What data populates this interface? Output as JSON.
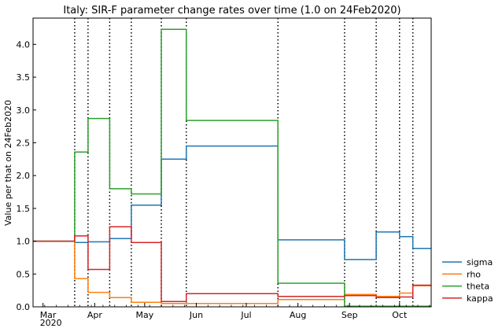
{
  "chart_data": {
    "type": "line",
    "title": "Italy: SIR-F parameter change rates over time (1.0 on 24Feb2020)",
    "xlabel": "",
    "ylabel": "Value per that on 24Feb2020",
    "xlim": [
      "2020-02-24",
      "2020-10-20"
    ],
    "ylim": [
      0,
      4.4
    ],
    "yticks": [
      0.0,
      0.5,
      1.0,
      1.5,
      2.0,
      2.5,
      3.0,
      3.5,
      4.0
    ],
    "xticks": [
      {
        "date": "2020-03-01",
        "label": "Mar",
        "sublabel": "2020"
      },
      {
        "date": "2020-04-01",
        "label": "Apr"
      },
      {
        "date": "2020-05-01",
        "label": "May"
      },
      {
        "date": "2020-06-01",
        "label": "Jun"
      },
      {
        "date": "2020-07-01",
        "label": "Jul"
      },
      {
        "date": "2020-08-01",
        "label": "Aug"
      },
      {
        "date": "2020-09-01",
        "label": "Sep"
      },
      {
        "date": "2020-10-01",
        "label": "Oct"
      }
    ],
    "change_dates": [
      "2020-03-20",
      "2020-03-28",
      "2020-04-10",
      "2020-04-23",
      "2020-05-11",
      "2020-05-26",
      "2020-07-20",
      "2020-08-29",
      "2020-09-17",
      "2020-10-01",
      "2020-10-09"
    ],
    "phase_starts": [
      "2020-02-24",
      "2020-03-20",
      "2020-03-28",
      "2020-04-10",
      "2020-04-23",
      "2020-05-11",
      "2020-05-26",
      "2020-07-20",
      "2020-08-29",
      "2020-09-17",
      "2020-10-01",
      "2020-10-09"
    ],
    "x_end": "2020-10-20",
    "grid": false,
    "legend_position": "right",
    "series": [
      {
        "name": "sigma",
        "color": "#1f77b4",
        "values": [
          1.0,
          0.98,
          0.99,
          1.04,
          1.55,
          2.25,
          2.45,
          1.02,
          0.72,
          1.14,
          1.07,
          0.89
        ]
      },
      {
        "name": "rho",
        "color": "#ff7f0e",
        "values": [
          1.0,
          0.43,
          0.22,
          0.14,
          0.07,
          0.05,
          0.05,
          0.11,
          0.19,
          0.16,
          0.21,
          0.32
        ]
      },
      {
        "name": "theta",
        "color": "#2ca02c",
        "values": [
          1.0,
          2.36,
          2.87,
          1.8,
          1.72,
          4.23,
          2.84,
          0.36,
          0.01,
          0.01,
          0.01,
          0.01
        ]
      },
      {
        "name": "kappa",
        "color": "#d62728",
        "values": [
          1.0,
          1.08,
          0.57,
          1.22,
          0.98,
          0.08,
          0.2,
          0.16,
          0.17,
          0.14,
          0.15,
          0.33
        ]
      }
    ]
  }
}
